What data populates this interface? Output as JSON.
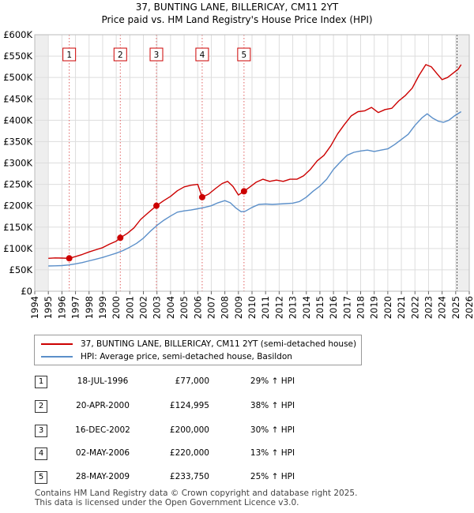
{
  "title_line1": "37, BUNTING LANE, BILLERICAY, CM11 2YT",
  "title_line2": "Price paid vs. HM Land Registry's House Price Index (HPI)",
  "chart_data": {
    "type": "line",
    "title": "37, BUNTING LANE, BILLERICAY, CM11 2YT — Price paid vs. HM Land Registry's House Price Index (HPI)",
    "xlim": [
      1994,
      2026
    ],
    "ylim": [
      0,
      600000
    ],
    "x_ticks": [
      1994,
      1995,
      1996,
      1997,
      1998,
      1999,
      2000,
      2001,
      2002,
      2003,
      2004,
      2005,
      2006,
      2007,
      2008,
      2009,
      2010,
      2011,
      2012,
      2013,
      2014,
      2015,
      2016,
      2017,
      2018,
      2019,
      2020,
      2021,
      2022,
      2023,
      2024,
      2025,
      2026
    ],
    "y_ticks": [
      {
        "value": 0,
        "label": "£0"
      },
      {
        "value": 50000,
        "label": "£50K"
      },
      {
        "value": 100000,
        "label": "£100K"
      },
      {
        "value": 150000,
        "label": "£150K"
      },
      {
        "value": 200000,
        "label": "£200K"
      },
      {
        "value": 250000,
        "label": "£250K"
      },
      {
        "value": 300000,
        "label": "£300K"
      },
      {
        "value": 350000,
        "label": "£350K"
      },
      {
        "value": 400000,
        "label": "£400K"
      },
      {
        "value": 450000,
        "label": "£450K"
      },
      {
        "value": 500000,
        "label": "£500K"
      },
      {
        "value": 550000,
        "label": "£550K"
      },
      {
        "value": 600000,
        "label": "£600K"
      }
    ],
    "grid": true,
    "series": [
      {
        "name": "37, BUNTING LANE, BILLERICAY, CM11 2YT (semi-detached house)",
        "color": "#cc0000",
        "points": [
          [
            1995.0,
            77000
          ],
          [
            1995.5,
            78000
          ],
          [
            1996.0,
            77500
          ],
          [
            1996.54,
            77000
          ],
          [
            1997.0,
            81000
          ],
          [
            1997.5,
            86000
          ],
          [
            1998.0,
            92000
          ],
          [
            1998.5,
            97000
          ],
          [
            1999.0,
            102000
          ],
          [
            1999.5,
            110000
          ],
          [
            2000.0,
            117000
          ],
          [
            2000.3,
            124995
          ],
          [
            2000.8,
            135000
          ],
          [
            2001.3,
            148000
          ],
          [
            2001.8,
            168000
          ],
          [
            2002.3,
            182000
          ],
          [
            2002.96,
            200000
          ],
          [
            2003.5,
            212000
          ],
          [
            2004.0,
            222000
          ],
          [
            2004.5,
            235000
          ],
          [
            2005.0,
            244000
          ],
          [
            2005.5,
            248000
          ],
          [
            2006.0,
            250000
          ],
          [
            2006.33,
            220000
          ],
          [
            2006.8,
            227000
          ],
          [
            2007.3,
            240000
          ],
          [
            2007.8,
            252000
          ],
          [
            2008.2,
            257000
          ],
          [
            2008.6,
            245000
          ],
          [
            2009.0,
            225000
          ],
          [
            2009.4,
            233750
          ],
          [
            2009.8,
            243000
          ],
          [
            2010.3,
            255000
          ],
          [
            2010.8,
            262000
          ],
          [
            2011.3,
            257000
          ],
          [
            2011.8,
            260000
          ],
          [
            2012.3,
            257000
          ],
          [
            2012.8,
            262000
          ],
          [
            2013.3,
            262000
          ],
          [
            2013.8,
            270000
          ],
          [
            2014.3,
            285000
          ],
          [
            2014.8,
            305000
          ],
          [
            2015.3,
            318000
          ],
          [
            2015.8,
            340000
          ],
          [
            2016.3,
            368000
          ],
          [
            2016.8,
            390000
          ],
          [
            2017.3,
            410000
          ],
          [
            2017.8,
            420000
          ],
          [
            2018.3,
            422000
          ],
          [
            2018.8,
            430000
          ],
          [
            2019.3,
            418000
          ],
          [
            2019.8,
            425000
          ],
          [
            2020.3,
            428000
          ],
          [
            2020.8,
            445000
          ],
          [
            2021.3,
            458000
          ],
          [
            2021.8,
            475000
          ],
          [
            2022.3,
            505000
          ],
          [
            2022.8,
            530000
          ],
          [
            2023.2,
            525000
          ],
          [
            2023.6,
            510000
          ],
          [
            2024.0,
            495000
          ],
          [
            2024.4,
            500000
          ],
          [
            2024.8,
            510000
          ],
          [
            2025.2,
            520000
          ],
          [
            2025.4,
            530000
          ]
        ]
      },
      {
        "name": "HPI: Average price, semi-detached house, Basildon",
        "color": "#5b8fc9",
        "points": [
          [
            1995.0,
            59000
          ],
          [
            1995.5,
            59500
          ],
          [
            1996.0,
            60000
          ],
          [
            1996.5,
            61500
          ],
          [
            1997.0,
            64000
          ],
          [
            1997.5,
            67000
          ],
          [
            1998.0,
            71000
          ],
          [
            1998.5,
            75000
          ],
          [
            1999.0,
            79000
          ],
          [
            1999.5,
            84000
          ],
          [
            2000.0,
            89000
          ],
          [
            2000.5,
            95000
          ],
          [
            2001.0,
            103000
          ],
          [
            2001.5,
            112000
          ],
          [
            2002.0,
            124000
          ],
          [
            2002.5,
            140000
          ],
          [
            2003.0,
            154000
          ],
          [
            2003.5,
            166000
          ],
          [
            2004.0,
            176000
          ],
          [
            2004.5,
            185000
          ],
          [
            2005.0,
            188000
          ],
          [
            2005.5,
            190000
          ],
          [
            2006.0,
            193000
          ],
          [
            2006.5,
            196000
          ],
          [
            2007.0,
            200000
          ],
          [
            2007.5,
            207000
          ],
          [
            2008.0,
            212000
          ],
          [
            2008.4,
            207000
          ],
          [
            2008.8,
            195000
          ],
          [
            2009.2,
            186000
          ],
          [
            2009.5,
            187000
          ],
          [
            2010.0,
            196000
          ],
          [
            2010.5,
            203000
          ],
          [
            2011.0,
            204000
          ],
          [
            2011.5,
            203000
          ],
          [
            2012.0,
            204000
          ],
          [
            2012.5,
            205000
          ],
          [
            2013.0,
            206000
          ],
          [
            2013.5,
            210000
          ],
          [
            2014.0,
            220000
          ],
          [
            2014.5,
            234000
          ],
          [
            2015.0,
            246000
          ],
          [
            2015.5,
            262000
          ],
          [
            2016.0,
            285000
          ],
          [
            2016.5,
            302000
          ],
          [
            2017.0,
            318000
          ],
          [
            2017.5,
            325000
          ],
          [
            2018.0,
            328000
          ],
          [
            2018.5,
            330000
          ],
          [
            2019.0,
            327000
          ],
          [
            2019.5,
            330000
          ],
          [
            2020.0,
            333000
          ],
          [
            2020.5,
            343000
          ],
          [
            2021.0,
            355000
          ],
          [
            2021.5,
            367000
          ],
          [
            2022.0,
            388000
          ],
          [
            2022.5,
            405000
          ],
          [
            2022.9,
            415000
          ],
          [
            2023.3,
            405000
          ],
          [
            2023.7,
            398000
          ],
          [
            2024.1,
            395000
          ],
          [
            2024.5,
            400000
          ],
          [
            2024.9,
            410000
          ],
          [
            2025.4,
            420000
          ]
        ]
      }
    ],
    "sales": [
      {
        "label": "1",
        "x": 1996.54,
        "price": 77000
      },
      {
        "label": "2",
        "x": 2000.3,
        "price": 124995
      },
      {
        "label": "3",
        "x": 2002.96,
        "price": 200000
      },
      {
        "label": "4",
        "x": 2006.33,
        "price": 220000
      },
      {
        "label": "5",
        "x": 2009.41,
        "price": 233750
      }
    ],
    "shaded_ranges": [
      [
        1994,
        1995
      ],
      [
        2025.0,
        2026
      ]
    ]
  },
  "legend": {
    "items": [
      {
        "label": "37, BUNTING LANE, BILLERICAY, CM11 2YT (semi-detached house)",
        "color": "#cc0000"
      },
      {
        "label": "HPI: Average price, semi-detached house, Basildon",
        "color": "#5b8fc9"
      }
    ]
  },
  "sales_table": {
    "rows": [
      {
        "num": "1",
        "date": "18-JUL-1996",
        "price": "£77,000",
        "hpi": "29% ↑ HPI"
      },
      {
        "num": "2",
        "date": "20-APR-2000",
        "price": "£124,995",
        "hpi": "38% ↑ HPI"
      },
      {
        "num": "3",
        "date": "16-DEC-2002",
        "price": "£200,000",
        "hpi": "30% ↑ HPI"
      },
      {
        "num": "4",
        "date": "02-MAY-2006",
        "price": "£220,000",
        "hpi": "13% ↑ HPI"
      },
      {
        "num": "5",
        "date": "28-MAY-2009",
        "price": "£233,750",
        "hpi": "25% ↑ HPI"
      }
    ]
  },
  "footer": {
    "line1": "Contains HM Land Registry data © Crown copyright and database right 2025.",
    "line2": "This data is licensed under the Open Government Licence v3.0."
  }
}
